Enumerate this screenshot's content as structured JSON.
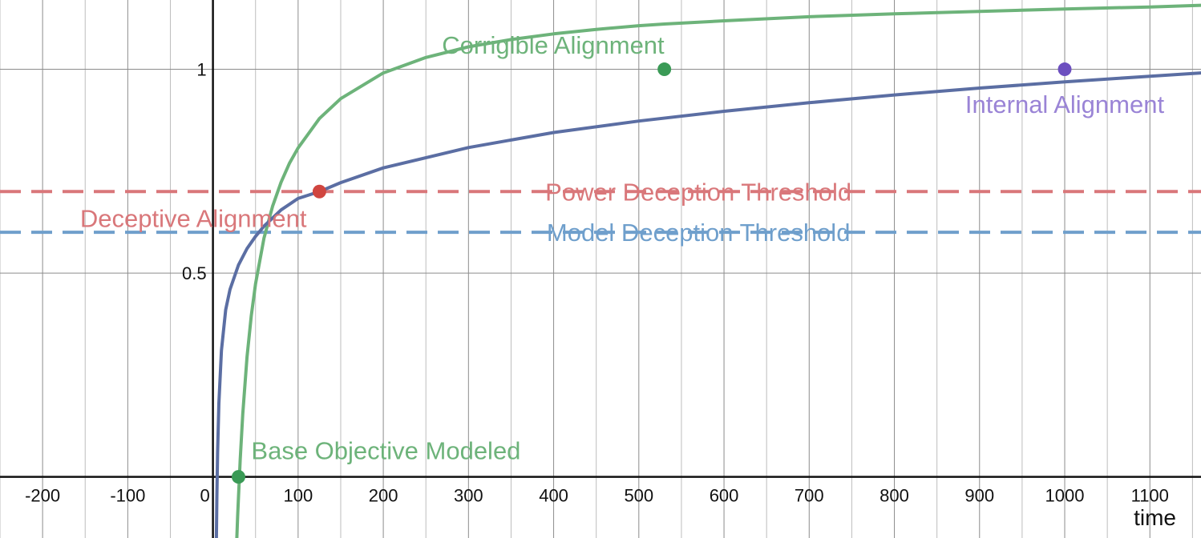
{
  "chart_data": {
    "type": "line",
    "title": "",
    "xlabel": "time",
    "ylabel": "",
    "xlim": [
      -250,
      1160
    ],
    "ylim": [
      -0.15,
      1.17
    ],
    "grid": true,
    "x_ticks": [
      -200,
      -100,
      0,
      100,
      200,
      300,
      400,
      500,
      600,
      700,
      800,
      900,
      1000,
      1100
    ],
    "x_tick_labels": [
      "-200",
      "-100",
      "0",
      "100",
      "200",
      "300",
      "400",
      "500",
      "600",
      "700",
      "800",
      "900",
      "1000",
      "1100"
    ],
    "y_ticks": [
      0.5,
      1
    ],
    "y_tick_labels": [
      "0.5",
      "1"
    ],
    "x_grid_step": 50,
    "y_grid": [
      0,
      0.5,
      1
    ],
    "series": [
      {
        "key": "green-curve",
        "color": "#6db37a",
        "x": [
          28,
          29,
          30,
          32,
          35,
          40,
          45,
          50,
          60,
          70,
          80,
          90,
          100,
          125,
          150,
          200,
          250,
          300,
          350,
          400,
          450,
          500,
          530,
          600,
          700,
          800,
          900,
          1000,
          1100,
          1160
        ],
        "y": [
          -0.15,
          -0.097,
          -0.048,
          0.042,
          0.154,
          0.294,
          0.395,
          0.473,
          0.586,
          0.664,
          0.723,
          0.77,
          0.807,
          0.879,
          0.928,
          0.991,
          1.029,
          1.055,
          1.073,
          1.087,
          1.098,
          1.107,
          1.111,
          1.119,
          1.129,
          1.136,
          1.142,
          1.148,
          1.153,
          1.157
        ]
      },
      {
        "key": "blue-curve",
        "color": "#5b6ea3",
        "x": [
          4,
          4.6,
          5.5,
          7,
          10,
          15,
          20,
          30,
          40,
          50,
          60,
          80,
          100,
          125,
          150,
          200,
          300,
          400,
          500,
          600,
          700,
          800,
          900,
          1000,
          1100,
          1160
        ],
        "y": [
          -0.15,
          -0.05,
          0.06,
          0.18,
          0.31,
          0.41,
          0.46,
          0.52,
          0.56,
          0.59,
          0.615,
          0.655,
          0.683,
          0.7,
          0.722,
          0.758,
          0.808,
          0.845,
          0.873,
          0.897,
          0.918,
          0.937,
          0.954,
          0.969,
          0.983,
          0.991
        ]
      }
    ],
    "thresholds": [
      {
        "label": "Power Deception Threshold",
        "y": 0.7,
        "color": "#d9777a",
        "label_x": 570
      },
      {
        "label": "Model Deception Threshold",
        "y": 0.6,
        "color": "#6f9fcc",
        "label_x": 570
      }
    ],
    "points": [
      {
        "label": "Base Objective Modeled",
        "x": 30,
        "y": 0,
        "color": "#3a9a56",
        "text_color": "#6db37a",
        "label_x": 45,
        "label_y": 0.065,
        "anchor": "start"
      },
      {
        "label": "Deceptive Alignment",
        "x": 125,
        "y": 0.7,
        "color": "#d0453f",
        "text_color": "#d9777a",
        "label_x": 110,
        "label_y": 0.635,
        "anchor": "end"
      },
      {
        "label": "Corrigible Alignment",
        "x": 530,
        "y": 1,
        "color": "#3a9a56",
        "text_color": "#6db37a",
        "label_x": 530,
        "label_y": 1.06,
        "anchor": "end"
      },
      {
        "label": "Internal Alignment",
        "x": 1000,
        "y": 1,
        "color": "#6c4fbf",
        "text_color": "#9a84d6",
        "label_x": 1000,
        "label_y": 0.915,
        "anchor": "middle"
      }
    ]
  }
}
